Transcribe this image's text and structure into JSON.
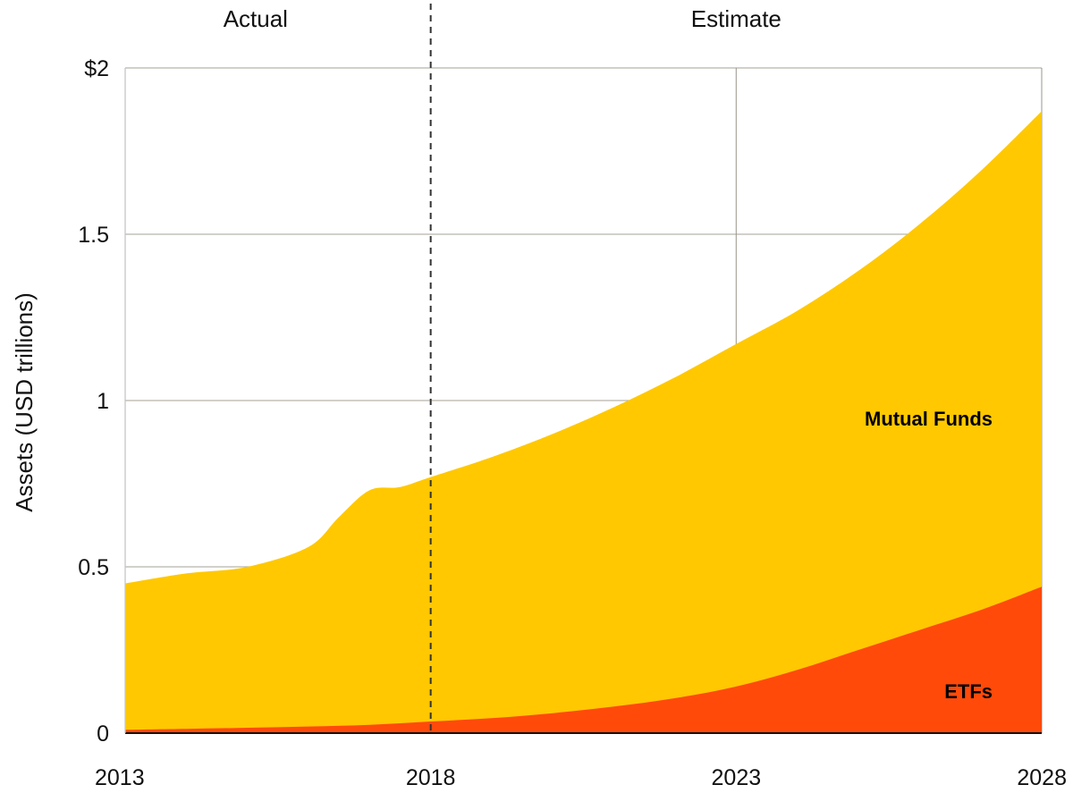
{
  "chart_data": {
    "type": "area",
    "stacked": true,
    "title": "",
    "xlabel": "",
    "ylabel": "Assets (USD trillions)",
    "xlim": [
      2013,
      2028
    ],
    "ylim": [
      0,
      2
    ],
    "x_ticks": [
      2013,
      2018,
      2023,
      2028
    ],
    "x_tick_labels": [
      "2013",
      "2018",
      "2023",
      "2028"
    ],
    "y_ticks": [
      0,
      0.5,
      1,
      1.5,
      2
    ],
    "y_tick_labels": [
      "0",
      "0.5",
      "1",
      "1.5",
      "$2"
    ],
    "grid": true,
    "periods": [
      {
        "label": "Actual",
        "from": 2013,
        "to": 2018
      },
      {
        "label": "Estimate",
        "from": 2018,
        "to": 2028
      }
    ],
    "divider_x": 2018,
    "series": [
      {
        "name": "ETFs",
        "color": "#FF4A0A",
        "x": [
          2013,
          2014,
          2015,
          2016,
          2017,
          2018,
          2019,
          2020,
          2021,
          2022,
          2023,
          2024,
          2025,
          2026,
          2027,
          2028
        ],
        "values": [
          0.01,
          0.013,
          0.016,
          0.02,
          0.025,
          0.035,
          0.045,
          0.06,
          0.08,
          0.105,
          0.14,
          0.19,
          0.25,
          0.31,
          0.37,
          0.44
        ]
      },
      {
        "name": "Mutual Funds",
        "color": "#FFC800",
        "total_x": [
          2013,
          2014,
          2015,
          2016,
          2016.5,
          2017,
          2017.5,
          2018,
          2019,
          2020,
          2021,
          2022,
          2023,
          2024,
          2025,
          2026,
          2027,
          2028
        ],
        "total_values": [
          0.45,
          0.48,
          0.5,
          0.56,
          0.65,
          0.73,
          0.74,
          0.77,
          0.83,
          0.9,
          0.98,
          1.07,
          1.17,
          1.27,
          1.39,
          1.53,
          1.69,
          1.87
        ]
      }
    ]
  }
}
